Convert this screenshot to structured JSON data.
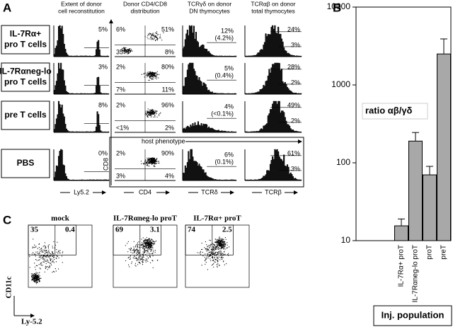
{
  "panel_a": {
    "letter": "A",
    "column_headers": [
      [
        "Extent of donor",
        "cell reconstitution"
      ],
      [
        "Donor CD4/CD8",
        "distribution"
      ],
      [
        "TCRγδ on donor",
        "DN thymocytes"
      ],
      [
        "TCRαβ on donor",
        "total thymocytes"
      ]
    ],
    "rows": [
      {
        "label": [
          "IL-7Rα+",
          "pro T cells"
        ],
        "reconstitution": "5%",
        "quadrants": [
          "6%",
          "51%",
          "35%",
          "8%"
        ],
        "tcr_gd": [
          "12%",
          "(4.2%)"
        ],
        "tcr_ab": [
          "24%",
          "3%"
        ]
      },
      {
        "label": [
          "IL-7Rαneg-lo",
          "pro T cells"
        ],
        "reconstitution": "3%",
        "quadrants": [
          "2%",
          "80%",
          "7%",
          "11%"
        ],
        "tcr_gd": [
          "5%",
          "(0.4%)"
        ],
        "tcr_ab": [
          "28%",
          "2%"
        ]
      },
      {
        "label": [
          "pre T cells"
        ],
        "reconstitution": "8%",
        "quadrants": [
          "2%",
          "96%",
          "<1%",
          "2%"
        ],
        "tcr_gd": [
          "4%",
          "(<0.1%)"
        ],
        "tcr_ab": [
          "49%",
          "2%"
        ]
      },
      {
        "label": [
          "PBS"
        ],
        "reconstitution": "0%",
        "quadrants": [
          "2%",
          "90%",
          "3%",
          "4%"
        ],
        "tcr_gd": [
          "6%",
          "(0.1%)"
        ],
        "tcr_ab": [
          "61%",
          "3%"
        ]
      }
    ],
    "host_phenotype": "host phenotype",
    "axis_labels": {
      "ly52": "Ly5.2",
      "cd8": "CD8",
      "cd4": "CD4",
      "tcrd": "TCRδ",
      "tcrb": "TCRβ"
    }
  },
  "chart_data": {
    "type": "bar",
    "letter": "B",
    "annotation": "ratio αβ/γδ",
    "x_label": "Inj. population",
    "categories": [
      "IL-7Rα+ proT",
      "IL-7Rαneg-lo proT",
      "proT",
      "preT"
    ],
    "values": [
      15.5,
      190,
      70,
      2500
    ],
    "errors": [
      3.5,
      55,
      20,
      1400
    ],
    "color": "#a8a8a8",
    "ylim": [
      10,
      10000
    ],
    "yticks": [
      10,
      100,
      1000,
      10000
    ],
    "log_scale": true
  },
  "panel_c": {
    "letter": "C",
    "plots": [
      {
        "title": "mock",
        "upper_left": "35",
        "upper_right": "0.4"
      },
      {
        "title": "IL-7Rαneg-lo proT",
        "upper_left": "69",
        "upper_right": "3.1"
      },
      {
        "title": "IL-7Rα+ proT",
        "upper_left": "74",
        "upper_right": "2.5"
      }
    ],
    "y_label": "CD11c",
    "x_label": "Ly-5.2"
  }
}
